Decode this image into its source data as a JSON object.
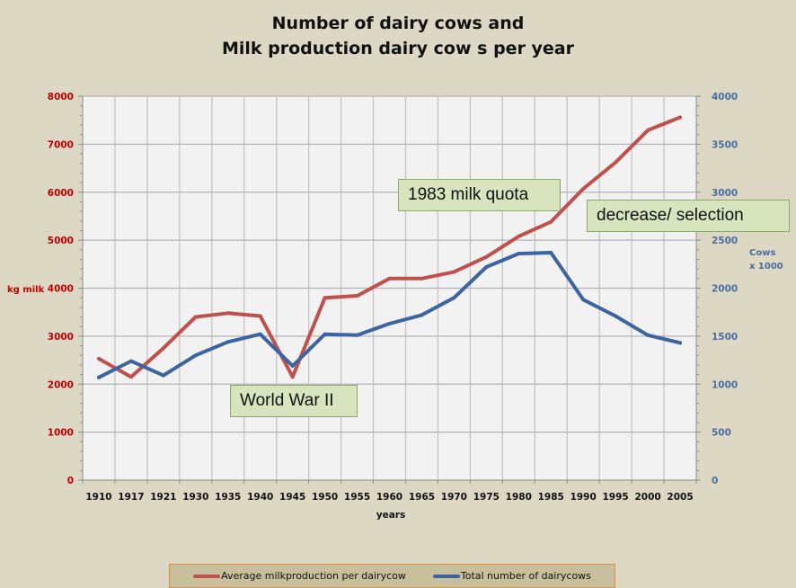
{
  "chart_data": {
    "type": "line",
    "title": [
      "Number of dairy cows and",
      "Milk production dairy cow s per year"
    ],
    "xlabel": "years",
    "ylabel_left": "kg milk",
    "ylabel_right": [
      "Cows",
      "x 1000"
    ],
    "categories": [
      "1910",
      "1917",
      "1921",
      "1930",
      "1935",
      "1940",
      "1945",
      "1950",
      "1955",
      "1960",
      "1965",
      "1970",
      "1975",
      "1980",
      "1985",
      "1990",
      "1995",
      "2000",
      "2005"
    ],
    "y_left": {
      "lim": [
        0,
        8000
      ],
      "ticks": [
        0,
        1000,
        2000,
        3000,
        4000,
        5000,
        6000,
        7000,
        8000
      ]
    },
    "y_right": {
      "lim": [
        0,
        4000
      ],
      "ticks": [
        0,
        500,
        1000,
        1500,
        2000,
        2500,
        3000,
        3500,
        4000
      ]
    },
    "grid": true,
    "legend_position": "bottom",
    "series": [
      {
        "name": "Average milkproduction per dairycow",
        "axis": "left",
        "color": "#c0504d",
        "values": [
          2530,
          2150,
          2750,
          3400,
          3480,
          3420,
          2150,
          3800,
          3840,
          4200,
          4200,
          4340,
          4650,
          5080,
          5380,
          6070,
          6620,
          7290,
          7560
        ]
      },
      {
        "name": "Total number of dairycows",
        "axis": "right",
        "color": "#3c64a0",
        "values": [
          1070,
          1240,
          1090,
          1300,
          1440,
          1520,
          1190,
          1520,
          1510,
          1630,
          1720,
          1900,
          2220,
          2360,
          2370,
          1880,
          1710,
          1510,
          1430
        ]
      }
    ],
    "annotations": [
      {
        "id": "ww2",
        "text": "World War II"
      },
      {
        "id": "quota",
        "text": "1983 milk quota"
      },
      {
        "id": "decrease",
        "text": "decrease/ selection"
      }
    ]
  }
}
